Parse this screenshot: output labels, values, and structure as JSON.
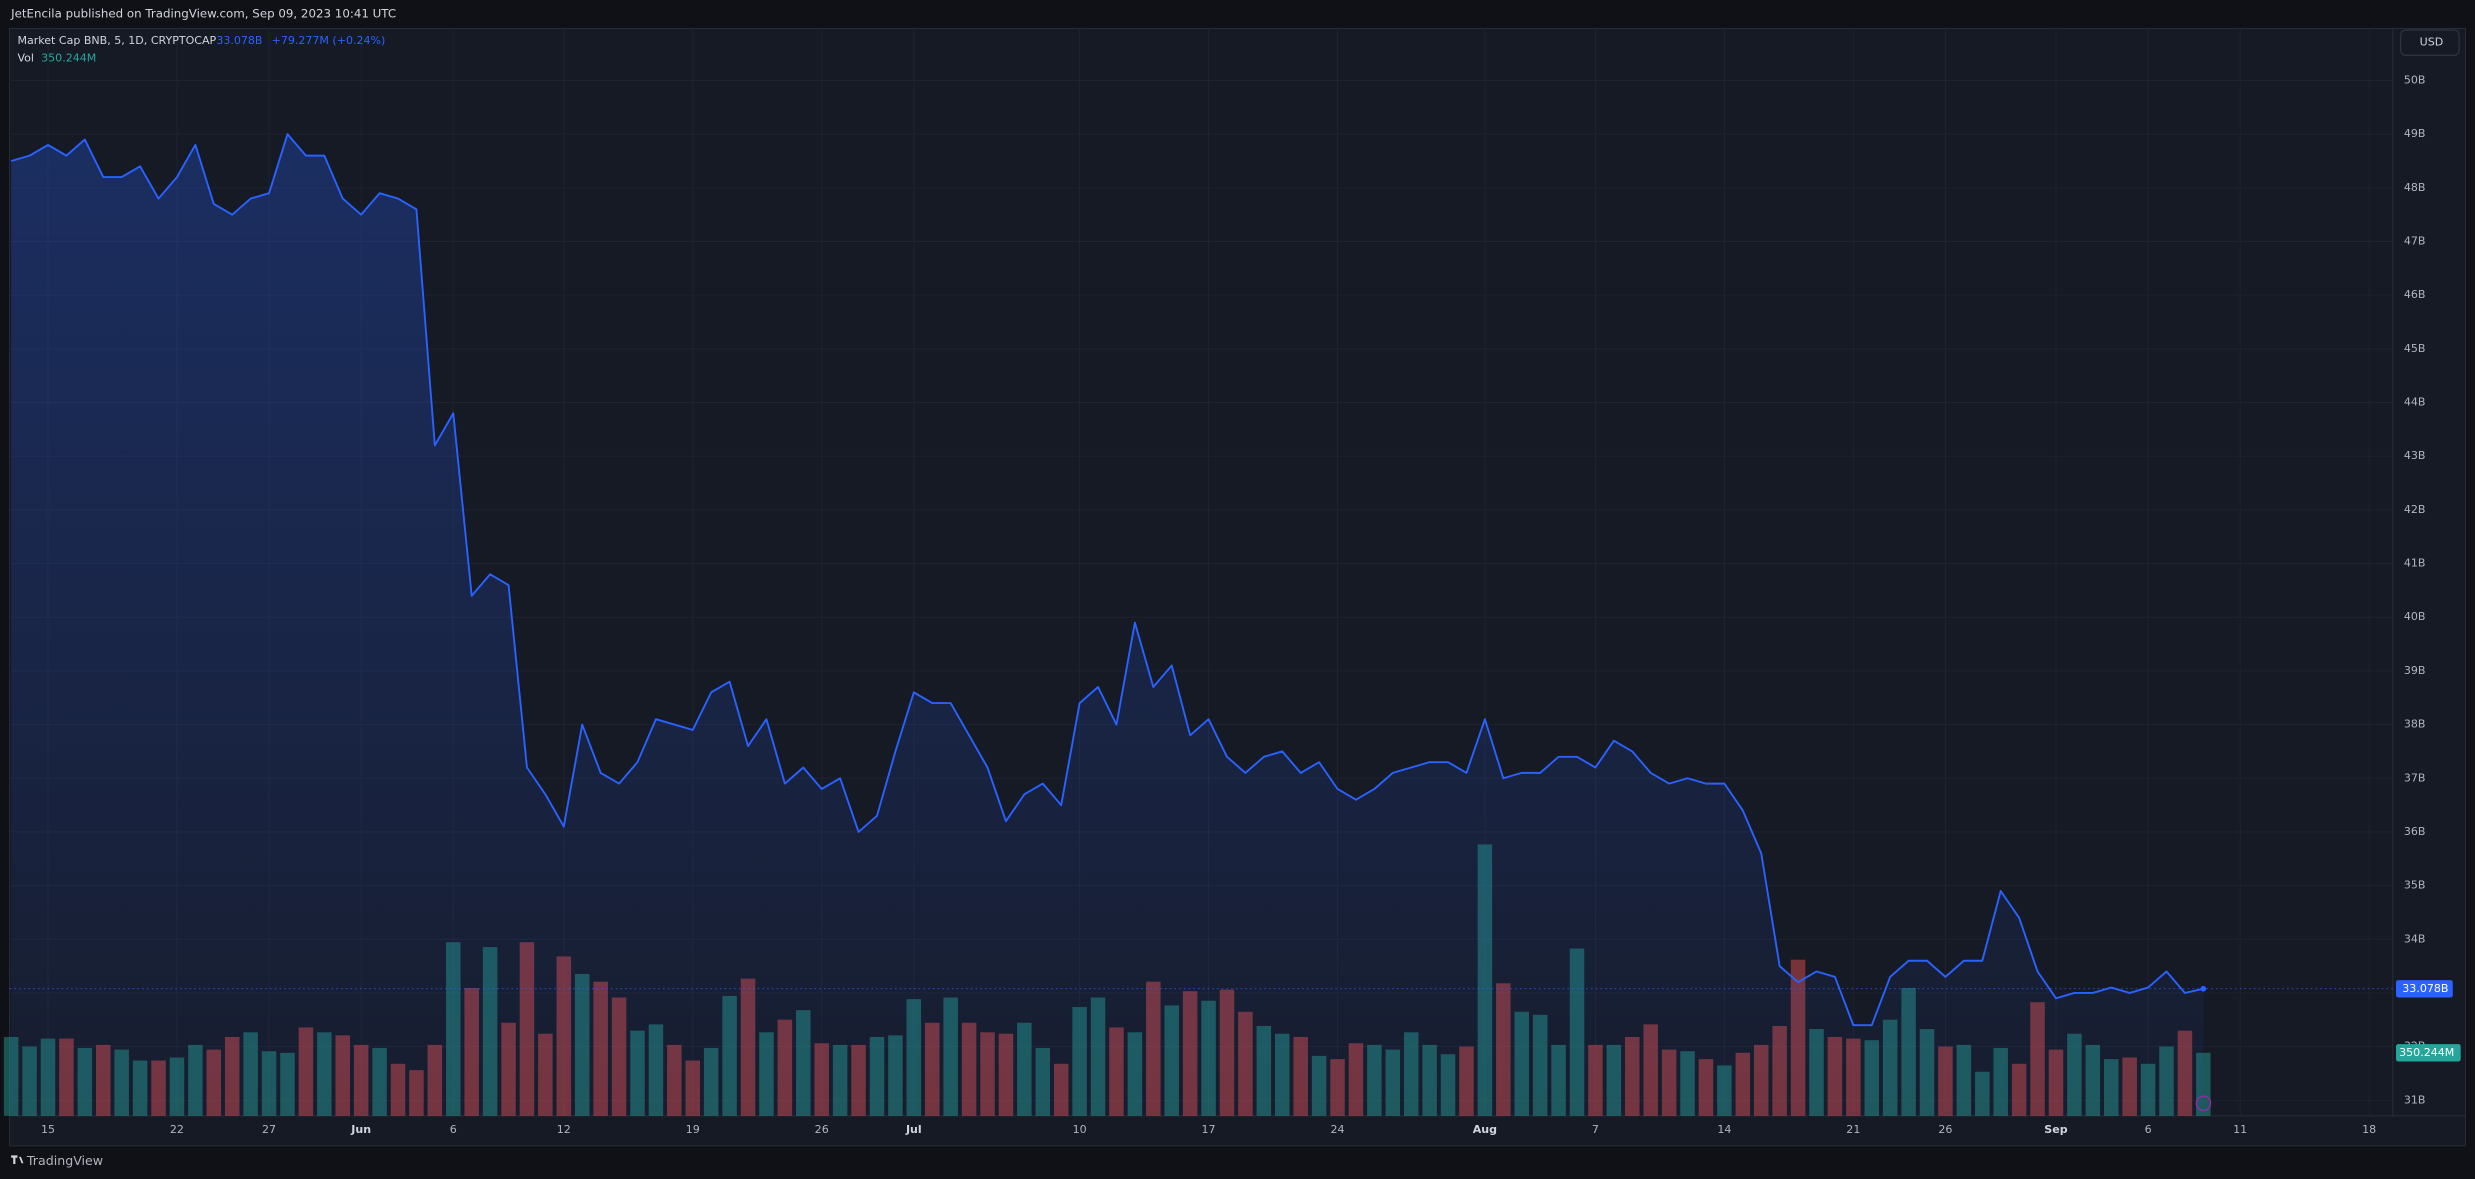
{
  "header": {
    "publisher": "JetEncila published on TradingView.com, Sep 09, 2023 10:41 UTC"
  },
  "footer": {
    "brand": "TradingView"
  },
  "chart_data": {
    "type": "line",
    "legend": {
      "symbol": "Market Cap BNB, 5, 1D, CRYPTOCAP",
      "price": "33.078B",
      "change": "+79.277M (+0.24%)"
    },
    "currency": "USD",
    "color": "#2962ff",
    "grid": true,
    "categories": [
      null,
      null,
      "15",
      null,
      null,
      null,
      null,
      null,
      null,
      "22",
      null,
      null,
      null,
      null,
      "27",
      null,
      null,
      null,
      null,
      "Jun",
      null,
      null,
      null,
      null,
      "6",
      null,
      null,
      null,
      null,
      null,
      "12",
      null,
      null,
      null,
      null,
      null,
      null,
      "19",
      null,
      null,
      null,
      null,
      null,
      null,
      "26",
      null,
      null,
      null,
      null,
      "Jul",
      null,
      null,
      null,
      null,
      null,
      null,
      null,
      null,
      "10",
      null,
      null,
      null,
      null,
      null,
      null,
      "17",
      null,
      null,
      null,
      null,
      null,
      null,
      "24",
      null,
      null,
      null,
      null,
      null,
      null,
      null,
      "Aug",
      null,
      null,
      null,
      null,
      null,
      "7",
      null,
      null,
      null,
      null,
      null,
      null,
      "14",
      null,
      null,
      null,
      null,
      null,
      null,
      "21",
      null,
      null,
      null,
      null,
      "26",
      null,
      null,
      null,
      null,
      null,
      "Sep",
      null,
      null,
      null,
      null,
      "6",
      null,
      null,
      null,
      null,
      "11",
      null,
      null,
      null,
      null,
      null,
      null,
      "18"
    ],
    "values": [
      48.5,
      48.6,
      48.8,
      48.6,
      48.9,
      48.2,
      48.2,
      48.4,
      47.8,
      48.2,
      48.8,
      47.7,
      47.5,
      47.8,
      47.9,
      49.0,
      48.6,
      48.6,
      47.8,
      47.5,
      47.9,
      47.8,
      47.6,
      43.2,
      43.8,
      40.4,
      40.8,
      40.6,
      37.2,
      36.7,
      36.1,
      38.0,
      37.1,
      36.9,
      37.3,
      38.1,
      38.0,
      37.9,
      38.6,
      38.8,
      37.6,
      38.1,
      36.9,
      37.2,
      36.8,
      37.0,
      36.0,
      36.3,
      37.5,
      38.6,
      38.4,
      38.4,
      37.8,
      37.2,
      36.2,
      36.7,
      36.9,
      36.5,
      38.4,
      38.7,
      38.0,
      39.9,
      38.7,
      39.1,
      37.8,
      38.1,
      37.4,
      37.1,
      37.4,
      37.5,
      37.1,
      37.3,
      36.8,
      36.6,
      36.8,
      37.1,
      37.2,
      37.3,
      37.3,
      37.1,
      38.1,
      37.0,
      37.1,
      37.1,
      37.4,
      37.4,
      37.2,
      37.7,
      37.5,
      37.1,
      36.9,
      37.0,
      36.9,
      36.9,
      36.4,
      35.6,
      33.5,
      33.2,
      33.4,
      33.3,
      32.4,
      32.4,
      33.3,
      33.6,
      33.6,
      33.3,
      33.6,
      33.6,
      34.9,
      34.4,
      33.4,
      32.9,
      33.0,
      33.0,
      33.1,
      33.0,
      33.1,
      33.4,
      33.0,
      33.078,
      null,
      null,
      null,
      null,
      null,
      null,
      null,
      null,
      null
    ],
    "ylim": [
      30.71,
      50.97
    ],
    "yticks": [
      {
        "value": 31,
        "label": "31B"
      },
      {
        "value": 32,
        "label": "32B"
      },
      {
        "value": 33,
        "label": "33B"
      },
      {
        "value": 34,
        "label": "34B"
      },
      {
        "value": 35,
        "label": "35B"
      },
      {
        "value": 36,
        "label": "36B"
      },
      {
        "value": 37,
        "label": "37B"
      },
      {
        "value": 38,
        "label": "38B"
      },
      {
        "value": 39,
        "label": "39B"
      },
      {
        "value": 40,
        "label": "40B"
      },
      {
        "value": 41,
        "label": "41B"
      },
      {
        "value": 42,
        "label": "42B"
      },
      {
        "value": 43,
        "label": "43B"
      },
      {
        "value": 44,
        "label": "44B"
      },
      {
        "value": 45,
        "label": "45B"
      },
      {
        "value": 46,
        "label": "46B"
      },
      {
        "value": 47,
        "label": "47B"
      },
      {
        "value": 48,
        "label": "48B"
      },
      {
        "value": 49,
        "label": "49B"
      },
      {
        "value": 50,
        "label": "50B"
      }
    ],
    "volume": {
      "name": "Vol",
      "label": "350.244M",
      "up_color": "#26a69a",
      "down_color": "#ef5350",
      "values": [
        438,
        385,
        429,
        429,
        377,
        394,
        368,
        307,
        307,
        324,
        394,
        368,
        438,
        464,
        359,
        350,
        491,
        464,
        447,
        394,
        377,
        289,
        254,
        394,
        964,
        710,
        937,
        517,
        964,
        456,
        885,
        788,
        745,
        657,
        473,
        508,
        394,
        307,
        377,
        666,
        762,
        464,
        534,
        587,
        403,
        394,
        394,
        438,
        447,
        648,
        517,
        657,
        517,
        464,
        456,
        517,
        377,
        289,
        604,
        657,
        491,
        464,
        745,
        613,
        692,
        639,
        701,
        578,
        499,
        456,
        438,
        333,
        315,
        403,
        394,
        368,
        464,
        394,
        342,
        385,
        1507,
        736,
        578,
        561,
        394,
        929,
        394,
        394,
        438,
        508,
        368,
        359,
        315,
        280,
        350,
        394,
        499,
        867,
        482,
        438,
        429,
        420,
        534,
        710,
        482,
        385,
        394,
        245,
        377,
        289,
        631,
        368,
        456,
        394,
        315,
        324,
        289,
        385,
        473,
        350.244,
        null,
        null,
        null,
        null,
        null,
        null,
        null,
        null,
        null
      ]
    }
  }
}
